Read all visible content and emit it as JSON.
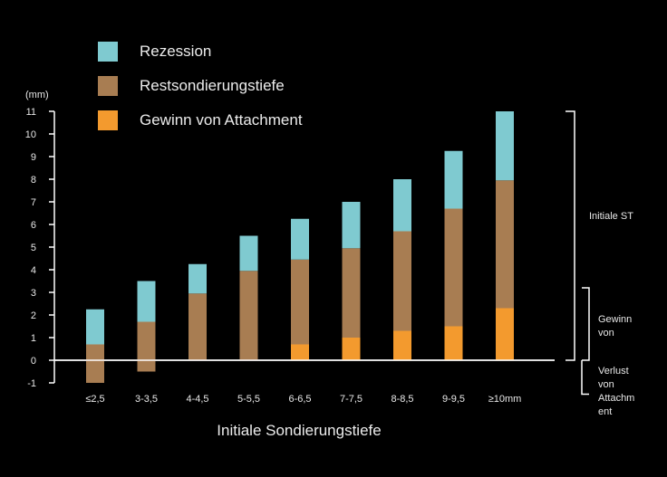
{
  "chart_data": {
    "type": "bar",
    "stacked": true,
    "title": "",
    "ylabel_unit": "(mm)",
    "xlabel": "Initiale Sondierungstiefe",
    "ylim": [
      -1,
      11
    ],
    "yticks": [
      -1,
      0,
      1,
      2,
      3,
      4,
      5,
      6,
      7,
      8,
      9,
      10,
      11
    ],
    "categories": [
      "≤2,5",
      "3-3,5",
      "4-4,5",
      "5-5,5",
      "6-6,5",
      "7-7,5",
      "8-8,5",
      "9-9,5",
      "≥10mm"
    ],
    "series": [
      {
        "name": "Gewinn von Attachment",
        "color": "#f39a2e",
        "values": [
          0,
          0,
          0,
          0,
          0.7,
          1.0,
          1.3,
          1.5,
          2.3
        ]
      },
      {
        "name": "Restsondierungstiefe",
        "color": "#a87d52",
        "bottom": [
          -1.0,
          -0.5,
          0,
          0,
          0.7,
          1.0,
          1.3,
          1.5,
          2.3
        ],
        "top": [
          0.7,
          1.7,
          2.95,
          3.95,
          4.45,
          4.95,
          5.7,
          6.7,
          7.95
        ]
      },
      {
        "name": "Rezession",
        "color": "#7fcad0",
        "bottom": [
          0.7,
          1.7,
          2.95,
          3.95,
          4.45,
          4.95,
          5.7,
          6.7,
          7.95
        ],
        "top": [
          2.25,
          3.5,
          4.25,
          5.5,
          6.25,
          7.0,
          8.0,
          9.25,
          11.0
        ]
      }
    ],
    "legend_position": "top-left",
    "annotations": {
      "bracket_top": "Initiale ST",
      "bracket_middle": "Gewinn von",
      "bracket_bottom": "Verlust von Attachm ent"
    },
    "grid": false
  }
}
